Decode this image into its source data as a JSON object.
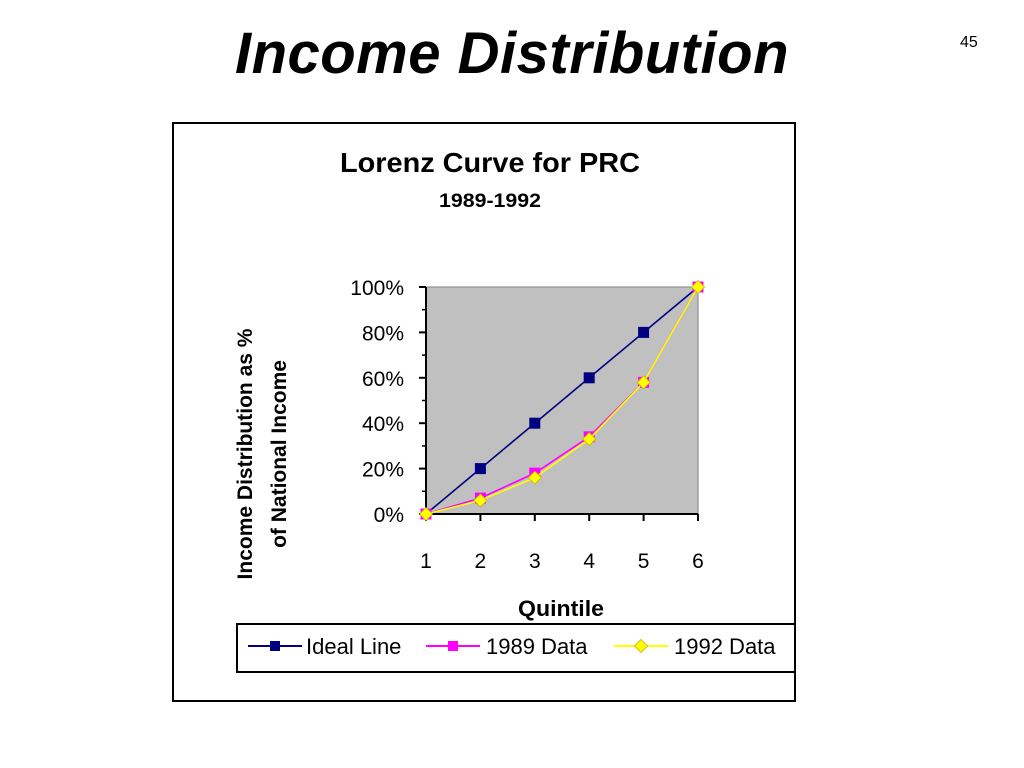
{
  "slide": {
    "title": "Income Distribution",
    "page_number": "45"
  },
  "chart_data": {
    "type": "line",
    "title": "Lorenz Curve for PRC",
    "subtitle": "1989-1992",
    "xlabel": "Quintile",
    "ylabel_line1": "Income Distribution as %",
    "ylabel_line2": "of National Income",
    "x": [
      1,
      2,
      3,
      4,
      5,
      6
    ],
    "x_tick_labels": [
      "1",
      "2",
      "3",
      "4",
      "5",
      "6"
    ],
    "y_tick_values": [
      0,
      20,
      40,
      60,
      80,
      100
    ],
    "y_tick_labels": [
      "0%",
      "20%",
      "40%",
      "60%",
      "80%",
      "100%"
    ],
    "xlim": [
      1,
      6
    ],
    "ylim": [
      0,
      100
    ],
    "grid": false,
    "plot_background": "#c0c0c0",
    "legend_position": "bottom",
    "series": [
      {
        "name": "Ideal Line",
        "values": [
          0,
          20,
          40,
          60,
          80,
          100
        ],
        "color": "#000080",
        "marker": "square"
      },
      {
        "name": "1989 Data",
        "values": [
          0,
          7,
          18,
          34,
          58,
          100
        ],
        "color": "#ff00ff",
        "marker": "square"
      },
      {
        "name": "1992 Data",
        "values": [
          0,
          6,
          16,
          33,
          58,
          100
        ],
        "color": "#ffff00",
        "marker": "diamond"
      }
    ]
  }
}
